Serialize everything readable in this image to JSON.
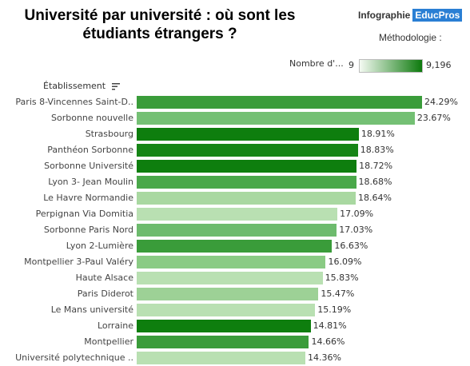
{
  "header": {
    "title": "Université par université : où sont les\nétudiants étrangers ?",
    "brand_text": "Infographie",
    "brand_logo": "EducPros",
    "methodology": "Méthodologie :"
  },
  "legend": {
    "title": "Nombre d'...",
    "min_label": "9",
    "max_label": "9,196",
    "min_color": "#f4faf2",
    "max_color": "#0d7a0d"
  },
  "column_header": {
    "label": "Établissement",
    "sort_icon": "sort-descending-icon"
  },
  "chart_data": {
    "type": "bar",
    "orientation": "horizontal",
    "color_encoding": "Nombre d'...",
    "color_range": [
      9,
      9196
    ],
    "categories": [
      "Paris 8-Vincennes Saint-D..",
      "Sorbonne nouvelle",
      "Strasbourg",
      "Panthéon Sorbonne",
      "Sorbonne Université",
      "Lyon 3- Jean Moulin",
      "Le Havre Normandie",
      "Perpignan Via Domitia",
      "Sorbonne Paris Nord",
      "Lyon 2-Lumière",
      "Montpellier 3-Paul Valéry",
      "Haute Alsace",
      "Paris Diderot",
      "Le Mans université",
      "Lorraine",
      "Montpellier",
      "Université polytechnique .."
    ],
    "values": [
      24.29,
      23.67,
      18.91,
      18.83,
      18.72,
      18.68,
      18.64,
      17.09,
      17.03,
      16.63,
      16.09,
      15.83,
      15.47,
      15.19,
      14.81,
      14.66,
      14.36
    ],
    "value_labels": [
      "24.29%",
      "23.67%",
      "18.91%",
      "18.83%",
      "18.72%",
      "18.68%",
      "18.64%",
      "17.09%",
      "17.03%",
      "16.63%",
      "16.09%",
      "15.83%",
      "15.47%",
      "15.19%",
      "14.81%",
      "14.66%",
      "14.36%"
    ],
    "colors": [
      "#3a9c3a",
      "#74c074",
      "#0e7e0e",
      "#168516",
      "#0e7e0e",
      "#4aa84a",
      "#a9d8a1",
      "#b9e0b2",
      "#6dbb6d",
      "#3a9c3a",
      "#8acb84",
      "#b9e0b2",
      "#9dd196",
      "#b9e0b2",
      "#0e7e0e",
      "#3a9c3a",
      "#b9e0b2"
    ],
    "xlim": [
      0,
      24.29
    ],
    "grid": false,
    "legend_position": "top-right"
  }
}
